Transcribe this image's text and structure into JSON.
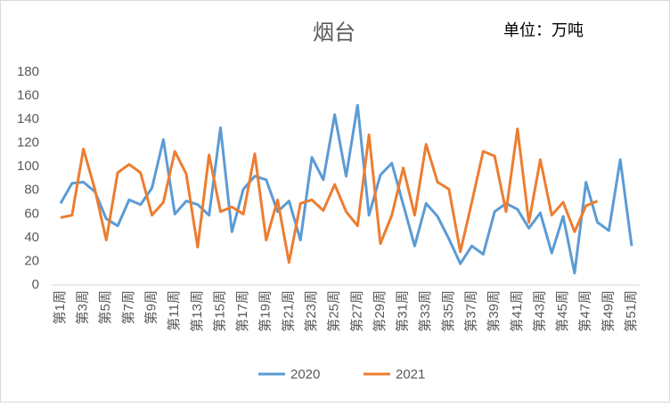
{
  "chart_data": {
    "type": "line",
    "title": "烟台",
    "unit_label": "单位：万吨",
    "categories": [
      "第1周",
      null,
      "第3周",
      null,
      "第5周",
      null,
      "第7周",
      null,
      "第9周",
      null,
      "第11周",
      null,
      "第13周",
      null,
      "第15周",
      null,
      "第17周",
      null,
      "第19周",
      null,
      "第21周",
      null,
      "第23周",
      null,
      "第25周",
      null,
      "第27周",
      null,
      "第29周",
      null,
      "第31周",
      null,
      "第33周",
      null,
      "第35周",
      null,
      "第37周",
      null,
      "第39周",
      null,
      "第41周",
      null,
      "第43周",
      null,
      "第45周",
      null,
      "第47周",
      null,
      "第49周",
      null,
      "第51周"
    ],
    "series": [
      {
        "name": "2020",
        "color": "#5b9bd5",
        "values": [
          69,
          86,
          87,
          79,
          56,
          50,
          72,
          68,
          82,
          123,
          60,
          71,
          68,
          59,
          133,
          45,
          81,
          92,
          89,
          62,
          71,
          38,
          108,
          89,
          144,
          92,
          152,
          59,
          93,
          103,
          68,
          33,
          69,
          58,
          39,
          18,
          33,
          26,
          62,
          69,
          64,
          48,
          61,
          27,
          58,
          10,
          87,
          53,
          46,
          106,
          33
        ]
      },
      {
        "name": "2021",
        "color": "#ed7d31",
        "values": [
          57,
          59,
          115,
          81,
          38,
          95,
          102,
          95,
          59,
          70,
          113,
          94,
          32,
          110,
          62,
          66,
          60,
          111,
          38,
          72,
          19,
          69,
          72,
          63,
          85,
          62,
          50,
          127,
          35,
          59,
          99,
          59,
          119,
          87,
          81,
          28,
          70,
          113,
          109,
          62,
          132,
          53,
          106,
          59,
          70,
          45,
          67,
          71,
          null,
          null,
          null
        ]
      }
    ],
    "ylim": [
      0,
      180
    ],
    "yticks": [
      0,
      20,
      40,
      60,
      80,
      100,
      120,
      140,
      160,
      180
    ],
    "grid": false,
    "legend": "bottom"
  }
}
